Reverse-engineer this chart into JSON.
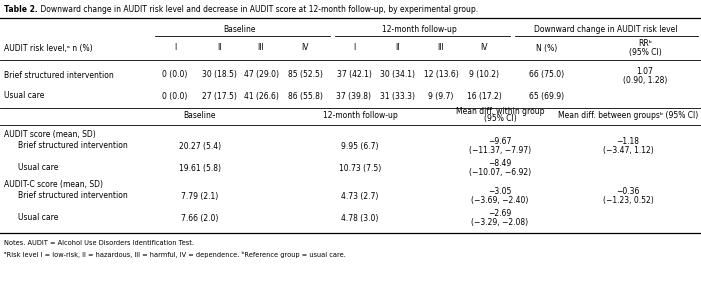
{
  "title_bold": "Table 2.",
  "title_rest": " Downward change in AUDIT risk level and decrease in AUDIT score at 12-month follow-up, by experimental group.",
  "notes_line1": "Notes. AUDIT = Alcohol Use Disorders Identification Test.",
  "notes_line2": "ᵃRisk level I = low-risk, II = hazardous, III = harmful, IV = dependence. ᵇReference group = usual care.",
  "bg_color": "#ffffff",
  "text_color": "#000000"
}
